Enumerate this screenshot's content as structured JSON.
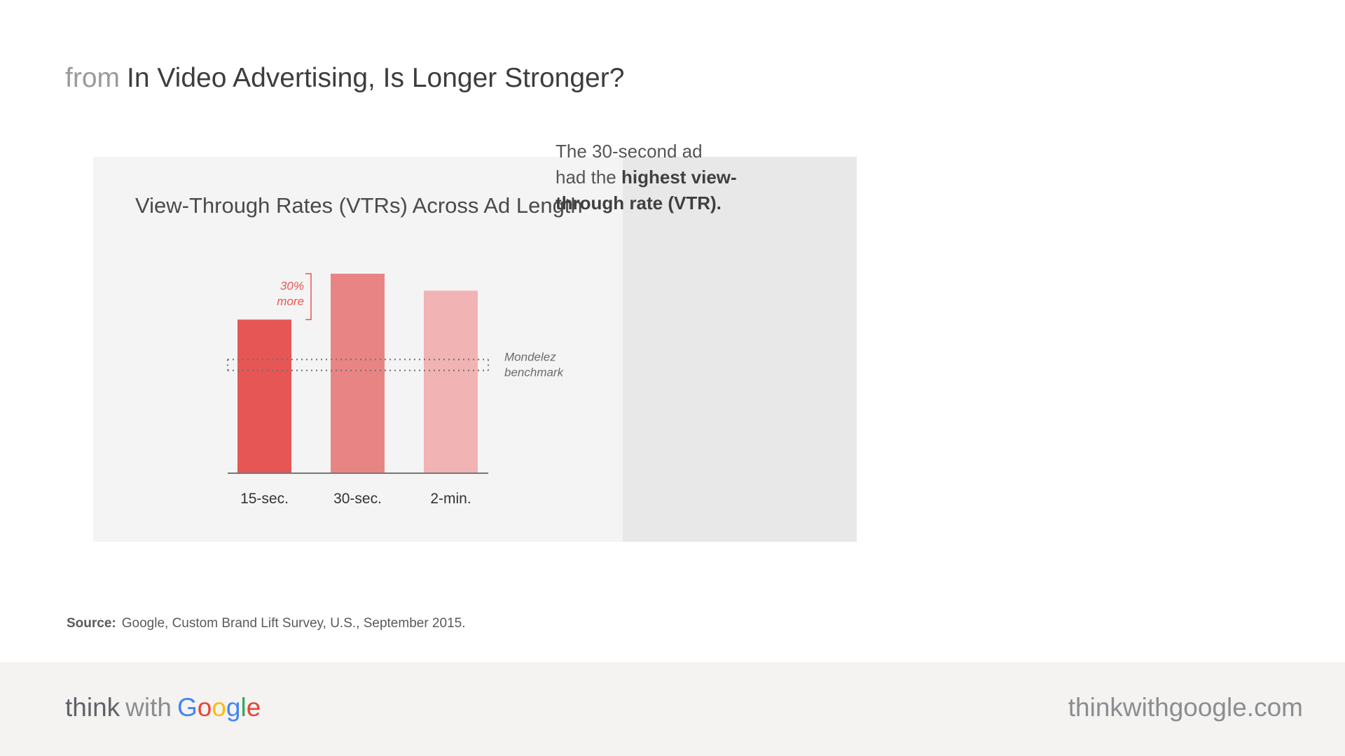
{
  "header": {
    "prefix": "from",
    "title": "In Video Advertising, Is Longer Stronger?"
  },
  "chart_data": {
    "type": "bar",
    "title": "View-Through Rates (VTRs) Across Ad Length",
    "categories": [
      "15-sec.",
      "30-sec.",
      "2-min."
    ],
    "values": [
      77,
      100,
      91.5
    ],
    "colors": [
      "#e65654",
      "#e88584",
      "#f1b3b3"
    ],
    "ylim": [
      0,
      100
    ],
    "benchmark": {
      "label_line1": "Mondelez",
      "label_line2": "benchmark",
      "range": [
        51.5,
        57
      ]
    },
    "annotation": {
      "line1": "30%",
      "line2": "more",
      "color": "#e65654"
    }
  },
  "insight": {
    "text_plain": "The 30-second ad had the ",
    "text_bold": "highest view-through rate (VTR)."
  },
  "source": {
    "label": "Source:",
    "text": "Google, Custom Brand Lift Survey, U.S., September 2015."
  },
  "footer": {
    "brand_think": "think",
    "brand_with": "with",
    "brand_google_letters": [
      "G",
      "o",
      "o",
      "g",
      "l",
      "e"
    ],
    "url": "thinkwithgoogle.com"
  }
}
